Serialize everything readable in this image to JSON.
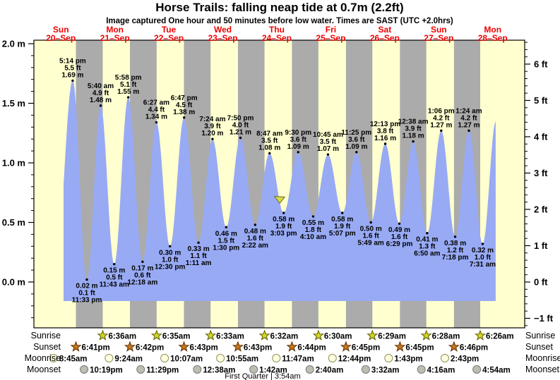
{
  "chart_data": {
    "type": "area",
    "title": "Horse Trails: falling  neap tide at 0.7m (2.2ft)",
    "subtitle": "Image captured One hour and 50 minutes before low water. Times are SAST (UTC +2.0hrs)",
    "days": [
      {
        "name": "Sun",
        "date": "20–Sep"
      },
      {
        "name": "Mon",
        "date": "21–Sep"
      },
      {
        "name": "Tue",
        "date": "22–Sep"
      },
      {
        "name": "Wed",
        "date": "23–Sep"
      },
      {
        "name": "Thu",
        "date": "24–Sep"
      },
      {
        "name": "Fri",
        "date": "25–Sep"
      },
      {
        "name": "Sat",
        "date": "26–Sep"
      },
      {
        "name": "Sun",
        "date": "27–Sep"
      },
      {
        "name": "Mon",
        "date": "28–Sep"
      }
    ],
    "y_axis_left": {
      "unit": "m",
      "major_ticks": [
        {
          "v": 2.0,
          "label": "2.0 m"
        },
        {
          "v": 1.5,
          "label": "1.5 m"
        },
        {
          "v": 1.0,
          "label": "1.0 m"
        },
        {
          "v": 0.5,
          "label": "0.5 m"
        },
        {
          "v": 0.0,
          "label": "0.0 m"
        }
      ]
    },
    "y_axis_right": {
      "unit": "ft",
      "major_ticks": [
        {
          "ft": 6,
          "label": "6 ft"
        },
        {
          "ft": 5,
          "label": "5 ft"
        },
        {
          "ft": 4,
          "label": "4 ft"
        },
        {
          "ft": 3,
          "label": "3 ft"
        },
        {
          "ft": 2,
          "label": "2 ft"
        },
        {
          "ft": 1,
          "label": "1 ft"
        },
        {
          "ft": 0,
          "label": "0 ft"
        },
        {
          "ft": -1,
          "label": "−1 ft"
        }
      ]
    },
    "extremes": [
      {
        "kind": "high",
        "t": 17.233,
        "v": 1.69,
        "time": "5:14 pm",
        "ft": "5.5 ft",
        "m": "1.69 m"
      },
      {
        "kind": "low",
        "t": 23.55,
        "v": 0.02,
        "time": "11:33 pm",
        "ft": "0.1 ft",
        "m": "0.02 m"
      },
      {
        "kind": "high",
        "t": 29.667,
        "v": 1.48,
        "time": "5:40 am",
        "ft": "4.9 ft",
        "m": "1.48 m"
      },
      {
        "kind": "low",
        "t": 35.717,
        "v": 0.15,
        "time": "11:43 am",
        "ft": "0.5 ft",
        "m": "0.15 m"
      },
      {
        "kind": "high",
        "t": 41.967,
        "v": 1.55,
        "time": "5:58 pm",
        "ft": "5.1 ft",
        "m": "1.55 m"
      },
      {
        "kind": "low",
        "t": 48.3,
        "v": 0.17,
        "time": "12:18 am",
        "ft": "0.6 ft",
        "m": "0.17 m"
      },
      {
        "kind": "high",
        "t": 54.45,
        "v": 1.34,
        "time": "6:27 am",
        "ft": "4.4 ft",
        "m": "1.34 m"
      },
      {
        "kind": "low",
        "t": 60.5,
        "v": 0.3,
        "time": "12:30 pm",
        "ft": "1.0 ft",
        "m": "0.30 m"
      },
      {
        "kind": "high",
        "t": 66.783,
        "v": 1.38,
        "time": "6:47 pm",
        "ft": "4.5 ft",
        "m": "1.38 m"
      },
      {
        "kind": "low",
        "t": 73.183,
        "v": 0.33,
        "time": "1:11 am",
        "ft": "1.1 ft",
        "m": "0.33 m"
      },
      {
        "kind": "high",
        "t": 79.4,
        "v": 1.2,
        "time": "7:24 am",
        "ft": "3.9 ft",
        "m": "1.20 m"
      },
      {
        "kind": "low",
        "t": 85.5,
        "v": 0.46,
        "time": "1:30 pm",
        "ft": "1.5 ft",
        "m": "0.46 m"
      },
      {
        "kind": "high",
        "t": 91.833,
        "v": 1.21,
        "time": "7:50 pm",
        "ft": "4.0 ft",
        "m": "1.21 m"
      },
      {
        "kind": "low",
        "t": 98.367,
        "v": 0.48,
        "time": "2:22 am",
        "ft": "1.6 ft",
        "m": "0.48 m"
      },
      {
        "kind": "high",
        "t": 104.783,
        "v": 1.08,
        "time": "8:47 am",
        "ft": "3.5 ft",
        "m": "1.08 m"
      },
      {
        "kind": "low",
        "t": 111.05,
        "v": 0.58,
        "time": "3:03 pm",
        "ft": "1.9 ft",
        "m": "0.58 m"
      },
      {
        "kind": "high",
        "t": 117.5,
        "v": 1.09,
        "time": "9:30 pm",
        "ft": "3.6 ft",
        "m": "1.09 m"
      },
      {
        "kind": "low",
        "t": 124.167,
        "v": 0.55,
        "time": "4:10 am",
        "ft": "1.8 ft",
        "m": "0.55 m"
      },
      {
        "kind": "high",
        "t": 130.75,
        "v": 1.07,
        "time": "10:45 am",
        "ft": "3.5 ft",
        "m": "1.07 m"
      },
      {
        "kind": "low",
        "t": 137.117,
        "v": 0.58,
        "time": "5:07 pm",
        "ft": "1.9 ft",
        "m": "0.58 m"
      },
      {
        "kind": "high",
        "t": 143.417,
        "v": 1.09,
        "time": "11:25 pm",
        "ft": "3.6 ft",
        "m": "1.09 m"
      },
      {
        "kind": "low",
        "t": 149.817,
        "v": 0.5,
        "time": "5:49 am",
        "ft": "1.6 ft",
        "m": "0.50 m"
      },
      {
        "kind": "high",
        "t": 156.217,
        "v": 1.16,
        "time": "12:13 pm",
        "ft": "3.8 ft",
        "m": "1.16 m"
      },
      {
        "kind": "low",
        "t": 162.483,
        "v": 0.49,
        "time": "6:29 pm",
        "ft": "1.6 ft",
        "m": "0.49 m"
      },
      {
        "kind": "high",
        "t": 168.633,
        "v": 1.18,
        "time": "12:38 am",
        "ft": "3.9 ft",
        "m": "1.18 m"
      },
      {
        "kind": "low",
        "t": 174.833,
        "v": 0.41,
        "time": "6:50 am",
        "ft": "1.3 ft",
        "m": "0.41 m"
      },
      {
        "kind": "high",
        "t": 181.1,
        "v": 1.27,
        "time": "1:06 pm",
        "ft": "4.2 ft",
        "m": "1.27 m"
      },
      {
        "kind": "low",
        "t": 187.3,
        "v": 0.38,
        "time": "7:18 pm",
        "ft": "1.2 ft",
        "m": "0.38 m"
      },
      {
        "kind": "high",
        "t": 193.4,
        "v": 1.27,
        "time": "1:24 am",
        "ft": "4.2 ft",
        "m": "1.27 m"
      },
      {
        "kind": "low",
        "t": 199.517,
        "v": 0.32,
        "time": "7:31 am",
        "ft": "1.0 ft",
        "m": "0.32 m"
      }
    ],
    "curve": {
      "start": {
        "t": 10.0,
        "v": 0.22
      },
      "end": {
        "t": 205.45,
        "v": 1.35
      },
      "clip_t": [
        13.19,
        205.3
      ],
      "baseline_v": -0.16
    },
    "current_time_marker": {
      "t": 109.3,
      "tip_v": 0.66
    },
    "astro": {
      "rows": [
        {
          "label": "Sunrise",
          "icon": "sunrise-star",
          "events": [
            {
              "time": "6:36am",
              "t": 30.6
            },
            {
              "time": "6:35am",
              "t": 54.583
            },
            {
              "time": "6:33am",
              "t": 78.55
            },
            {
              "time": "6:32am",
              "t": 102.533
            },
            {
              "time": "6:30am",
              "t": 126.5
            },
            {
              "time": "6:29am",
              "t": 150.483
            },
            {
              "time": "6:28am",
              "t": 174.467
            },
            {
              "time": "6:26am",
              "t": 198.433
            }
          ]
        },
        {
          "label": "Sunset",
          "icon": "sunset-star",
          "events": [
            {
              "time": "6:41pm",
              "t": 18.683
            },
            {
              "time": "6:42pm",
              "t": 42.7
            },
            {
              "time": "6:43pm",
              "t": 66.717
            },
            {
              "time": "6:43pm",
              "t": 90.717
            },
            {
              "time": "6:44pm",
              "t": 114.733
            },
            {
              "time": "6:45pm",
              "t": 138.75
            },
            {
              "time": "6:45pm",
              "t": 162.75
            },
            {
              "time": "6:46pm",
              "t": 186.767
            }
          ]
        },
        {
          "label": "Moonrise",
          "icon": "moonrise-circle",
          "events": [
            {
              "time": "8:45am",
              "t": 8.75
            },
            {
              "time": "9:24am",
              "t": 33.4
            },
            {
              "time": "10:07am",
              "t": 58.117
            },
            {
              "time": "10:55am",
              "t": 82.917
            },
            {
              "time": "11:47am",
              "t": 107.783
            },
            {
              "time": "12:44pm",
              "t": 132.733
            },
            {
              "time": "1:43pm",
              "t": 157.717
            },
            {
              "time": "2:43pm",
              "t": 182.717
            }
          ]
        },
        {
          "label": "Moonset",
          "icon": "moonset-circle",
          "events": [
            {
              "time": "10:19pm",
              "t": 22.317
            },
            {
              "time": "11:29pm",
              "t": 47.483
            },
            {
              "time": "12:38am",
              "t": 72.633
            },
            {
              "time": "1:42am",
              "t": 97.7
            },
            {
              "time": "2:40am",
              "t": 122.667
            },
            {
              "time": "3:32am",
              "t": 147.533
            },
            {
              "time": "4:16am",
              "t": 172.267
            },
            {
              "time": "4:54am",
              "t": 196.9
            }
          ]
        }
      ],
      "footer": "First Quarter | 3:54am"
    },
    "colors": {
      "day_band": "#ffffcf",
      "night_band": "#ababab",
      "tide_fill": "#98aaf4",
      "day_label": "#ee0000",
      "axis": "#000000",
      "annotation": "#000000",
      "marker_fill": "#d8d84a",
      "marker_stroke": "#6b6b2a",
      "sunrise_fill": "#d4d42a",
      "sunrise_stroke": "#5c5c00",
      "sunset_fill": "#c8761e",
      "sunset_stroke": "#5d2f00",
      "moonrise_fill": "#ffffe0",
      "moonrise_stroke": "#90905a",
      "moonset_fill": "#bdbdb0",
      "moonset_stroke": "#7a7a7a"
    }
  }
}
